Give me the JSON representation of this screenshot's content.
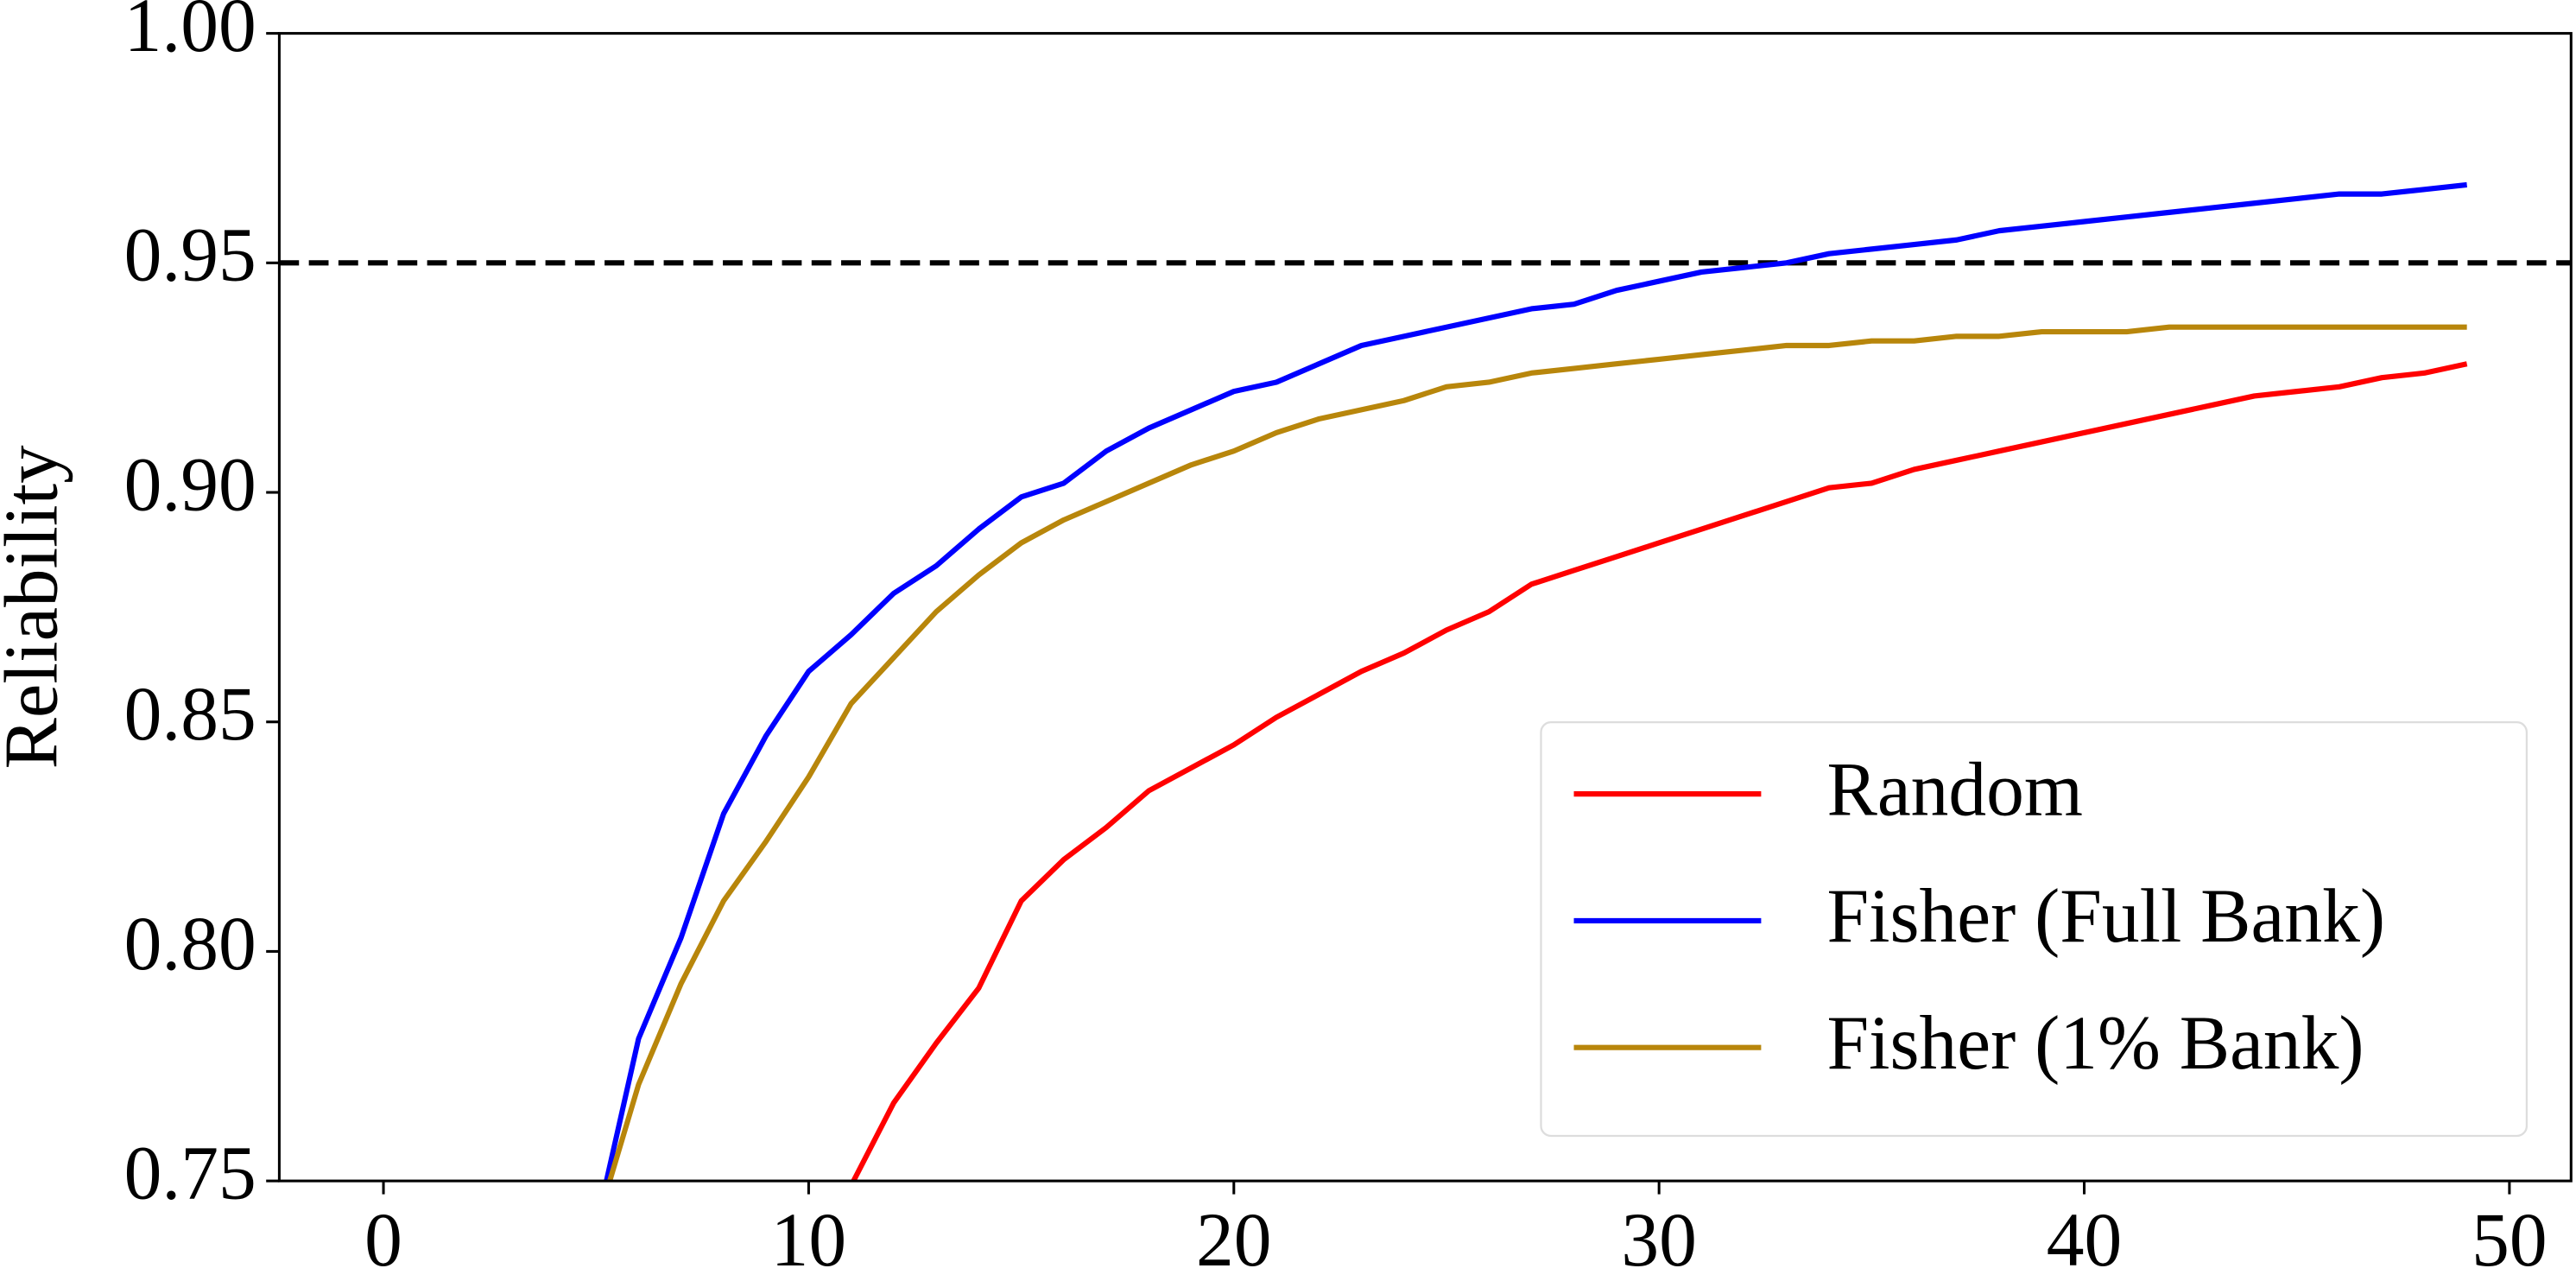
{
  "chart_data": {
    "type": "line",
    "ylabel": "Reliability",
    "x": [
      5,
      6,
      7,
      8,
      9,
      10,
      11,
      12,
      13,
      14,
      15,
      16,
      17,
      18,
      19,
      20,
      21,
      22,
      23,
      24,
      25,
      26,
      27,
      28,
      29,
      30,
      31,
      32,
      33,
      34,
      35,
      36,
      37,
      38,
      39,
      40,
      41,
      42,
      43,
      44,
      45,
      46,
      47,
      48,
      49
    ],
    "series": [
      {
        "name": "Random",
        "color": "#ff0000",
        "values": [
          null,
          null,
          null,
          null,
          null,
          0.731,
          0.749,
          0.767,
          0.78,
          0.792,
          0.811,
          0.82,
          0.827,
          0.835,
          0.84,
          0.845,
          0.851,
          0.856,
          0.861,
          0.865,
          0.87,
          0.874,
          0.88,
          0.883,
          0.886,
          0.889,
          0.892,
          0.895,
          0.898,
          0.901,
          0.902,
          0.905,
          0.907,
          0.909,
          0.911,
          0.913,
          0.915,
          0.917,
          0.919,
          0.921,
          0.922,
          0.923,
          0.925,
          0.926,
          0.928
        ]
      },
      {
        "name": "Fisher (Full Bank)",
        "color": "#0000ff",
        "values": [
          0.74,
          0.781,
          0.803,
          0.83,
          0.847,
          0.861,
          0.869,
          0.878,
          0.884,
          0.892,
          0.899,
          0.902,
          0.909,
          0.914,
          0.918,
          0.922,
          0.924,
          0.928,
          0.932,
          0.934,
          0.936,
          0.938,
          0.94,
          0.941,
          0.944,
          0.946,
          0.948,
          0.949,
          0.95,
          0.952,
          0.953,
          0.954,
          0.955,
          0.957,
          0.958,
          0.959,
          0.96,
          0.961,
          0.962,
          0.963,
          0.964,
          0.965,
          0.965,
          0.966,
          0.967
        ]
      },
      {
        "name": "Fisher (1% Bank)",
        "color": "#b8860b",
        "values": [
          0.74,
          0.771,
          0.793,
          0.811,
          0.824,
          0.838,
          0.854,
          0.864,
          0.874,
          0.882,
          0.889,
          0.894,
          0.898,
          0.902,
          0.906,
          0.909,
          0.913,
          0.916,
          0.918,
          0.92,
          0.923,
          0.924,
          0.926,
          0.927,
          0.928,
          0.929,
          0.93,
          0.931,
          0.932,
          0.932,
          0.933,
          0.933,
          0.934,
          0.934,
          0.935,
          0.935,
          0.935,
          0.936,
          0.936,
          0.936,
          0.936,
          0.936,
          0.936,
          0.936,
          0.936
        ]
      }
    ],
    "xlim": [
      -2.45,
      51.45
    ],
    "xticks": [
      0,
      10,
      20,
      30,
      40,
      50
    ],
    "ylim": [
      0.75,
      1.0
    ],
    "yticks": [
      {
        "value": 0.75,
        "label": "0.75"
      },
      {
        "value": 0.8,
        "label": "0.80"
      },
      {
        "value": 0.85,
        "label": "0.85"
      },
      {
        "value": 0.9,
        "label": "0.90"
      },
      {
        "value": 0.95,
        "label": "0.95"
      },
      {
        "value": 1.0,
        "label": "1.00"
      }
    ],
    "hline": {
      "value": 0.95,
      "color": "#000000",
      "style": "dashed"
    },
    "legend": "lower right",
    "grid": false
  }
}
